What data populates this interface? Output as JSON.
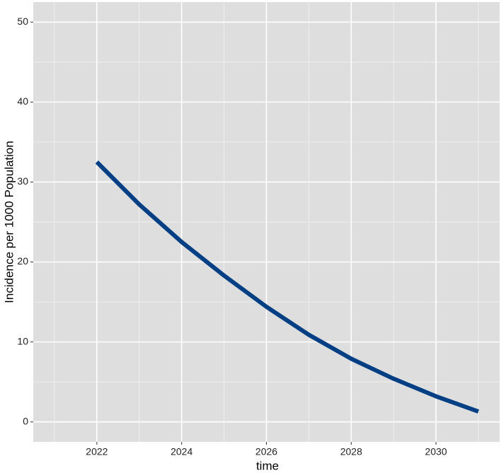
{
  "chart_data": {
    "type": "line",
    "x_label": "time",
    "y_label": "Incidence per 1000 Population",
    "x": [
      2022,
      2023,
      2024,
      2025,
      2026,
      2027,
      2028,
      2029,
      2030,
      2031
    ],
    "series": [
      {
        "color": "#003f84",
        "values": [
          32.5,
          27.2,
          22.5,
          18.3,
          14.4,
          10.9,
          7.9,
          5.4,
          3.2,
          1.3
        ]
      }
    ],
    "xlim": [
      2020.5,
      2031.5
    ],
    "xticks": [
      2022,
      2024,
      2026,
      2028,
      2030
    ],
    "ylim": [
      -2.5,
      52.5
    ],
    "yticks": [
      0,
      10,
      20,
      30,
      40,
      50
    ],
    "grid": true
  }
}
